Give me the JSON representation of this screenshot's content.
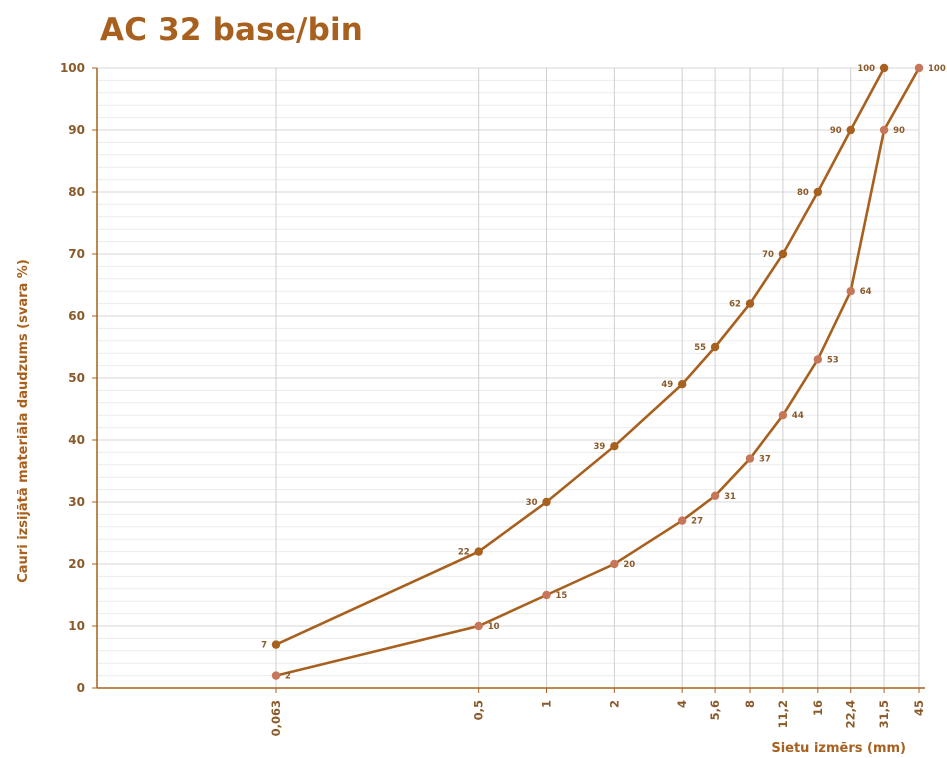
{
  "chart_data": {
    "type": "line",
    "title": "AC 32 base/bin",
    "xlabel": "Sietu izmērs (mm)",
    "ylabel": "Cauri izsijātā materiāla daudzums (svara %)",
    "x_scale": "log",
    "ylim": [
      0,
      100
    ],
    "y_ticks": [
      "0",
      "10",
      "20",
      "30",
      "40",
      "50",
      "60",
      "70",
      "80",
      "90",
      "100"
    ],
    "x_tick_labels": [
      "0,063",
      "0,5",
      "1",
      "2",
      "4",
      "5,6",
      "8",
      "11,2",
      "16",
      "22,4",
      "31,5",
      "45"
    ],
    "x": [
      0.063,
      0.5,
      1,
      2,
      4,
      5.6,
      8,
      11.2,
      16,
      22.4,
      31.5,
      45
    ],
    "grid": true,
    "legend": "none",
    "series": [
      {
        "color": "#a8601e",
        "point_color": "#a8601e",
        "x": [
          0.063,
          0.5,
          1,
          2,
          4,
          5.6,
          8,
          11.2,
          16,
          22.4,
          31.5
        ],
        "values": [
          7,
          22,
          30,
          39,
          49,
          55,
          62,
          70,
          80,
          90,
          100
        ],
        "labels": [
          "7",
          "22",
          "30",
          "39",
          "49",
          "55",
          "62",
          "70",
          "80",
          "90",
          "100"
        ],
        "label_side": "left"
      },
      {
        "color": "#a8601e",
        "point_color": "#c8765a",
        "x": [
          0.063,
          0.5,
          1,
          2,
          4,
          5.6,
          8,
          11.2,
          16,
          22.4,
          31.5,
          45
        ],
        "values": [
          2,
          10,
          15,
          20,
          27,
          31,
          37,
          44,
          53,
          64,
          90,
          100
        ],
        "labels": [
          "2",
          "10",
          "15",
          "20",
          "27",
          "31",
          "37",
          "44",
          "53",
          "64",
          "90",
          "100"
        ],
        "label_side": "right"
      }
    ]
  }
}
